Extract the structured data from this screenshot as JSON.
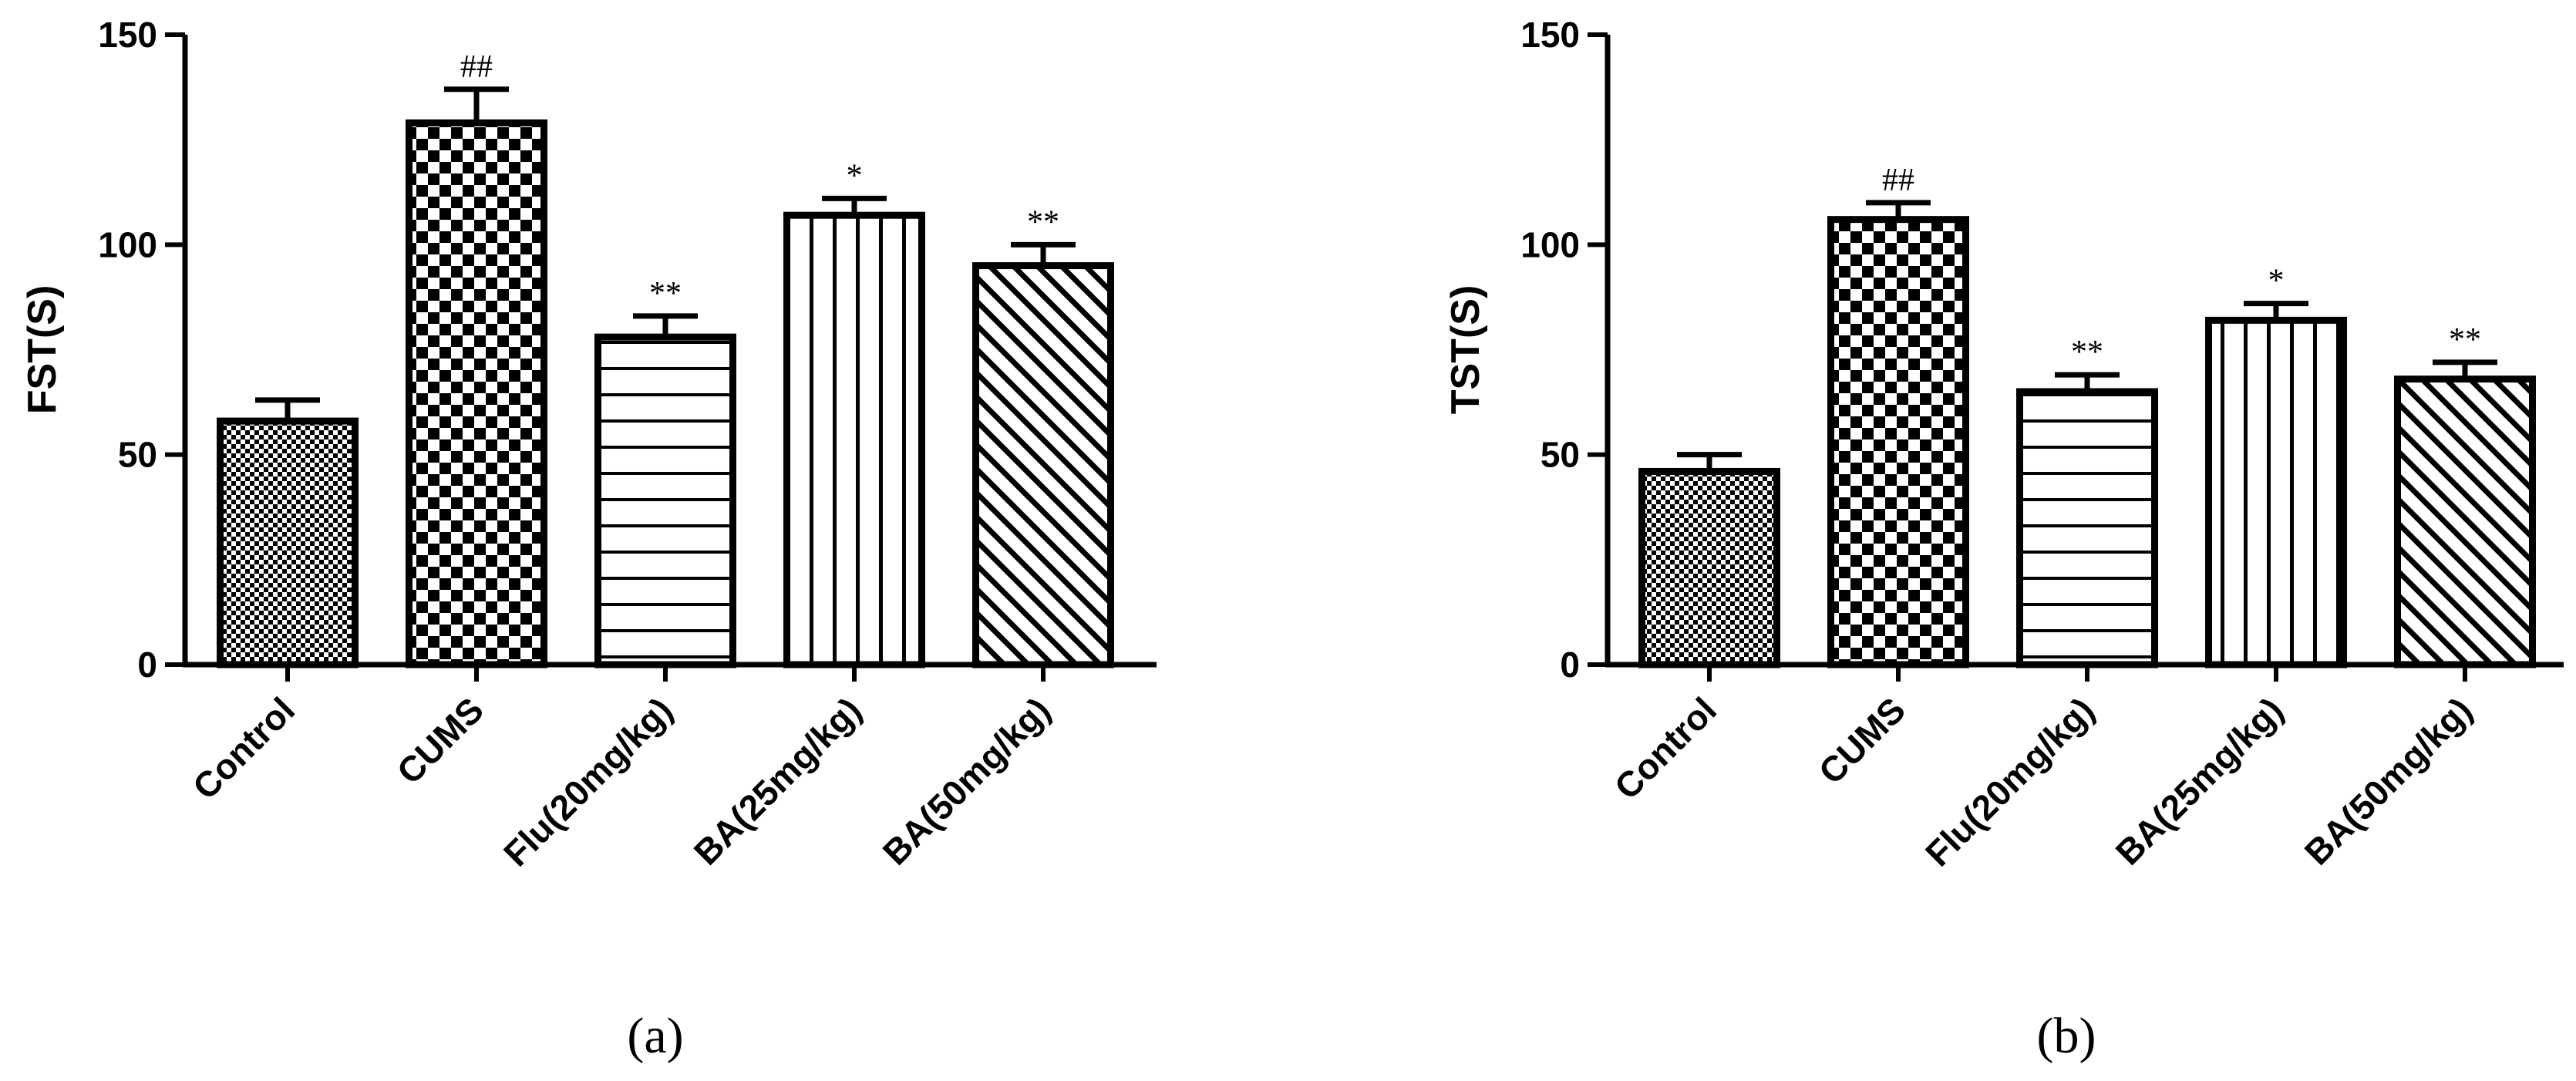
{
  "chart_data": [
    {
      "type": "bar",
      "panel_label": "(a)",
      "ylabel": "FST(S)",
      "ylim": [
        0,
        150
      ],
      "yticks": [
        "0",
        "50",
        "100",
        "150"
      ],
      "categories": [
        "Control",
        "CUMS",
        "Flu(20mg/kg)",
        "BA(25mg/kg)",
        "BA(50mg/kg)"
      ],
      "values": [
        58,
        129,
        78,
        107,
        95
      ],
      "error": [
        5,
        8,
        5,
        4,
        5
      ],
      "significance": [
        "",
        "##",
        "**",
        "*",
        "**"
      ],
      "patterns": [
        "fine-checker",
        "coarse-checker",
        "horizontal-lines",
        "vertical-lines",
        "diagonal-lines"
      ]
    },
    {
      "type": "bar",
      "panel_label": "(b)",
      "ylabel": "TST(S)",
      "ylim": [
        0,
        150
      ],
      "yticks": [
        "0",
        "50",
        "100",
        "150"
      ],
      "categories": [
        "Control",
        "CUMS",
        "Flu(20mg/kg)",
        "BA(25mg/kg)",
        "BA(50mg/kg)"
      ],
      "values": [
        46,
        106,
        65,
        82,
        68
      ],
      "error": [
        4,
        4,
        4,
        4,
        4
      ],
      "significance": [
        "",
        "##",
        "**",
        "*",
        "**"
      ],
      "patterns": [
        "fine-checker",
        "coarse-checker",
        "horizontal-lines",
        "vertical-lines",
        "diagonal-lines"
      ]
    }
  ]
}
